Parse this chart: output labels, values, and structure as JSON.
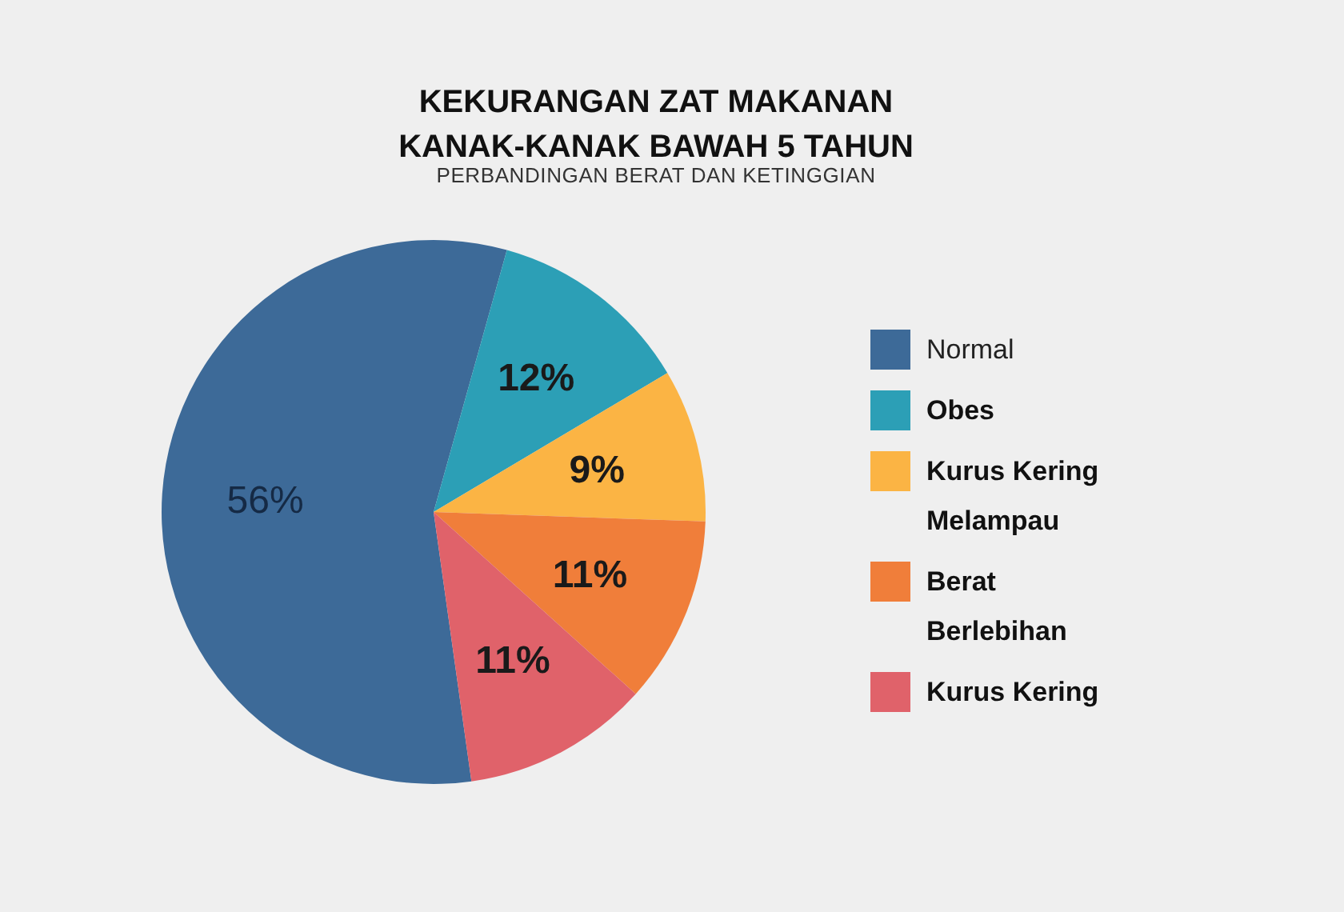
{
  "chart_data": {
    "type": "pie",
    "title": "KEKURANGAN ZAT MAKANAN\nKANAK-KANAK BAWAH 5 TAHUN",
    "subtitle": "PERBANDINGAN BERAT DAN KETINGGIAN",
    "categories": [
      "Normal",
      "Obes",
      "Kurus Kering Melampau",
      "Berat Berlebihan",
      "Kurus Kering"
    ],
    "values": [
      56,
      12,
      9,
      11,
      11
    ],
    "colors": [
      "#3d6a98",
      "#2c9fb6",
      "#fbb444",
      "#f07e3a",
      "#e0626a"
    ],
    "value_labels": [
      "56%",
      "12%",
      "9%",
      "11%",
      "11%"
    ],
    "legend": "right"
  }
}
